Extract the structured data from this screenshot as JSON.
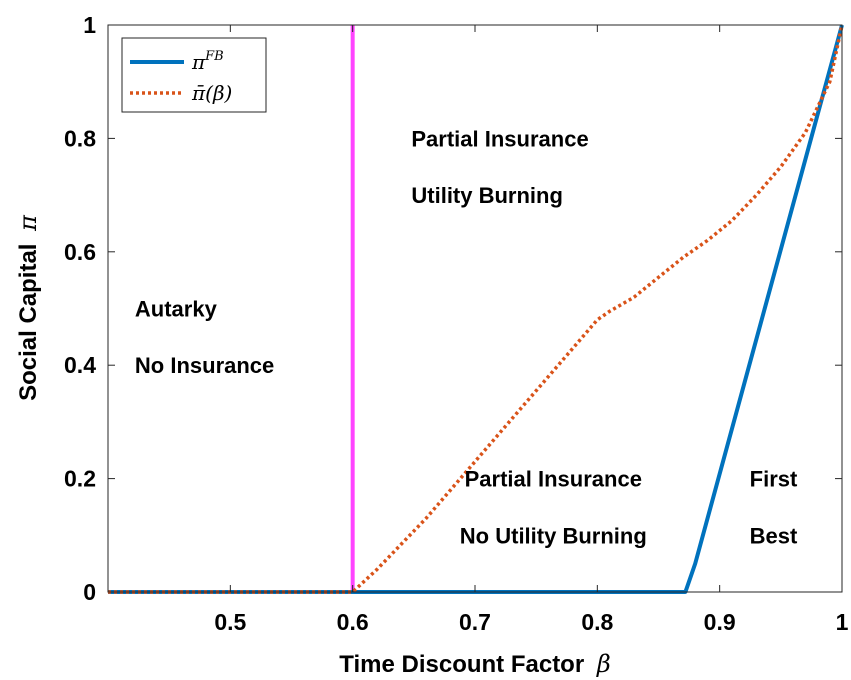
{
  "chart_data": {
    "type": "line",
    "xlabel": "Time Discount Factor",
    "xlabel_symbol": "β",
    "ylabel": "Social Capital",
    "ylabel_symbol": "π",
    "xlim": [
      0.4,
      1.0
    ],
    "ylim": [
      0,
      1
    ],
    "xticks": [
      0.5,
      0.6,
      0.7,
      0.8,
      0.9,
      1.0
    ],
    "xtick_labels": [
      "0.5",
      "0.6",
      "0.7",
      "0.8",
      "0.9",
      "1"
    ],
    "yticks": [
      0,
      0.2,
      0.4,
      0.6,
      0.8,
      1.0
    ],
    "ytick_labels": [
      "0",
      "0.2",
      "0.4",
      "0.6",
      "0.8",
      "1"
    ],
    "grid": false,
    "legend_position": "top-left",
    "series": [
      {
        "name": "π^FB",
        "legend_base": "π",
        "legend_sup": "FB",
        "color": "#0072BD",
        "style": "solid",
        "x": [
          0.4,
          0.872,
          0.88,
          1.0
        ],
        "y": [
          0.0,
          0.0,
          0.05,
          1.0
        ]
      },
      {
        "name": "π̄(β)",
        "legend_text": "π̄(β)",
        "color": "#D95319",
        "style": "dotted",
        "x": [
          0.4,
          0.6,
          0.62,
          0.66,
          0.7,
          0.74,
          0.78,
          0.8,
          0.81,
          0.83,
          0.85,
          0.87,
          0.89,
          0.91,
          0.93,
          0.95,
          0.97,
          0.99,
          1.0
        ],
        "y": [
          0.0,
          0.0,
          0.04,
          0.13,
          0.23,
          0.33,
          0.43,
          0.48,
          0.495,
          0.52,
          0.555,
          0.59,
          0.62,
          0.655,
          0.7,
          0.75,
          0.81,
          0.9,
          1.0
        ]
      }
    ],
    "vertical_lines": [
      {
        "x": 0.6,
        "color": "#FF44FF"
      }
    ],
    "annotations": [
      {
        "id": "autarky",
        "text": "Autarky",
        "x": 0.422,
        "y": 0.5,
        "anchor": "start"
      },
      {
        "id": "no-insurance",
        "text": "No Insurance",
        "x": 0.422,
        "y": 0.4,
        "anchor": "start"
      },
      {
        "id": "partial-insurance-top",
        "text": "Partial Insurance",
        "x": 0.648,
        "y": 0.8,
        "anchor": "start"
      },
      {
        "id": "utility-burning",
        "text": "Utility Burning",
        "x": 0.648,
        "y": 0.7,
        "anchor": "start"
      },
      {
        "id": "partial-insurance-bottom",
        "text": "Partial Insurance",
        "x": 0.764,
        "y": 0.2,
        "anchor": "middle"
      },
      {
        "id": "no-utility-burning",
        "text": "No Utility Burning",
        "x": 0.764,
        "y": 0.1,
        "anchor": "middle"
      },
      {
        "id": "first",
        "text": "First",
        "x": 0.944,
        "y": 0.2,
        "anchor": "middle"
      },
      {
        "id": "best",
        "text": "Best",
        "x": 0.944,
        "y": 0.1,
        "anchor": "middle"
      }
    ]
  }
}
